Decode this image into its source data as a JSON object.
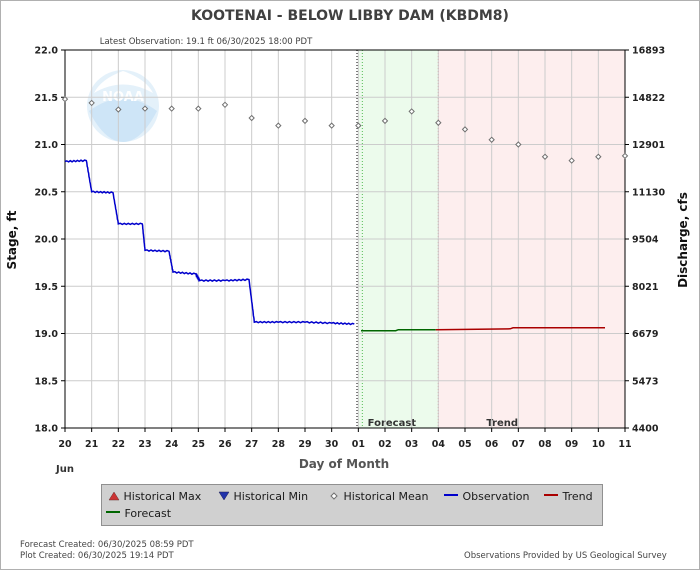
{
  "chart_data": {
    "type": "line",
    "title": "KOOTENAI - BELOW LIBBY DAM  (KBDM8)",
    "subtitle": "Latest Observation: 19.1 ft 06/30/2025 18:00 PDT",
    "xlabel": "Day of Month",
    "month_label": "Jun",
    "ylabel_left": "Stage, ft",
    "ylabel_right": "Discharge, cfs",
    "ylim": [
      18.0,
      22.0
    ],
    "y_ticks": [
      "18.0",
      "18.5",
      "19.0",
      "19.5",
      "20.0",
      "20.5",
      "21.0",
      "21.5",
      "22.0"
    ],
    "y_right_ticks": [
      "4400",
      "5473",
      "6679",
      "8021",
      "9504",
      "11130",
      "12901",
      "14822",
      "16893"
    ],
    "x_ticks": [
      "20",
      "21",
      "22",
      "23",
      "24",
      "25",
      "26",
      "27",
      "28",
      "29",
      "30",
      "01",
      "02",
      "03",
      "04",
      "05",
      "06",
      "07",
      "08",
      "09",
      "10",
      "11"
    ],
    "grid": true,
    "region_labels": {
      "forecast": "Forecast",
      "trend": "Trend"
    },
    "series": [
      {
        "name": "Observation",
        "color": "#0000cc",
        "points": [
          [
            0.0,
            20.82
          ],
          [
            0.8,
            20.83
          ],
          [
            1.0,
            20.5
          ],
          [
            1.8,
            20.49
          ],
          [
            2.0,
            20.16
          ],
          [
            2.9,
            20.16
          ],
          [
            3.0,
            19.88
          ],
          [
            3.9,
            19.87
          ],
          [
            4.05,
            19.65
          ],
          [
            4.9,
            19.63
          ],
          [
            5.05,
            19.56
          ],
          [
            6.0,
            19.56
          ],
          [
            6.9,
            19.57
          ],
          [
            7.1,
            19.12
          ],
          [
            8.0,
            19.12
          ],
          [
            9.0,
            19.12
          ],
          [
            10.0,
            19.11
          ],
          [
            10.85,
            19.1
          ]
        ]
      },
      {
        "name": "Forecast",
        "color": "#006600",
        "points": [
          [
            11.1,
            19.03
          ],
          [
            12.4,
            19.03
          ],
          [
            12.5,
            19.04
          ],
          [
            13.9,
            19.04
          ]
        ]
      },
      {
        "name": "Trend",
        "color": "#aa0000",
        "points": [
          [
            13.9,
            19.04
          ],
          [
            16.7,
            19.05
          ],
          [
            16.8,
            19.06
          ],
          [
            20.25,
            19.06
          ]
        ]
      },
      {
        "name": "Historical Mean",
        "color": "#707070",
        "points": [
          [
            0,
            21.48
          ],
          [
            1,
            21.44
          ],
          [
            2,
            21.37
          ],
          [
            3,
            21.38
          ],
          [
            4,
            21.38
          ],
          [
            5,
            21.38
          ],
          [
            6,
            21.42
          ],
          [
            7,
            21.28
          ],
          [
            8,
            21.2
          ],
          [
            9,
            21.25
          ],
          [
            10,
            21.2
          ],
          [
            11,
            21.2
          ],
          [
            12,
            21.25
          ],
          [
            13,
            21.35
          ],
          [
            14,
            21.23
          ],
          [
            15,
            21.16
          ],
          [
            16,
            21.05
          ],
          [
            17,
            21.0
          ],
          [
            18,
            20.87
          ],
          [
            19,
            20.83
          ],
          [
            20,
            20.87
          ],
          [
            21,
            20.88
          ]
        ]
      }
    ],
    "legend": [
      {
        "label": "Historical Max",
        "symbol": "triangle-up",
        "color": "#cc3333"
      },
      {
        "label": "Historical Min",
        "symbol": "triangle-down",
        "color": "#3333cc"
      },
      {
        "label": "Historical Mean",
        "symbol": "diamond",
        "color": "#707070"
      },
      {
        "label": "Observation",
        "symbol": "line",
        "color": "#0000cc"
      },
      {
        "label": "Trend",
        "symbol": "line",
        "color": "#aa0000"
      },
      {
        "label": "Forecast",
        "symbol": "line",
        "color": "#006600"
      }
    ]
  },
  "footer": {
    "forecast_created": "Forecast Created: 06/30/2025 08:59 PDT",
    "plot_created": "Plot Created: 06/30/2025 19:14 PDT",
    "credit": "Observations Provided by US Geological Survey"
  },
  "logo_text": "NOAA"
}
